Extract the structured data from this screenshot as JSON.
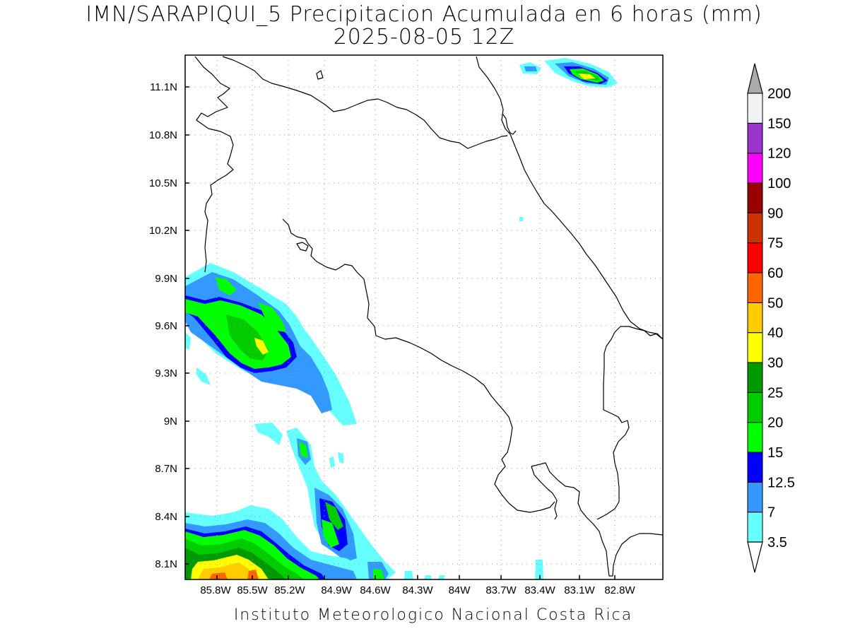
{
  "title": {
    "line1": "IMN/SARAPIQUI_5 Precipitacion Acumulada en 6 horas (mm)",
    "line2": "2025-08-05 12Z"
  },
  "axes": {
    "lat_labels": [
      "11.1N",
      "10.8N",
      "10.5N",
      "10.2N",
      "9.9N",
      "9.6N",
      "9.3N",
      "9N",
      "8.7N",
      "8.4N",
      "8.1N"
    ],
    "lon_labels": [
      "85.8W",
      "85.5W",
      "85.2W",
      "84.9W",
      "84.6W",
      "84.3W",
      "84W",
      "83.7W",
      "83.4W",
      "83.1W",
      "82.8W"
    ]
  },
  "colorbar": {
    "labels": [
      "3.5",
      "7",
      "12.5",
      "15",
      "20",
      "25",
      "30",
      "40",
      "50",
      "60",
      "75",
      "90",
      "100",
      "120",
      "150",
      "200"
    ],
    "colors": [
      "#66ffff",
      "#3399ff",
      "#0000ff",
      "#00ff00",
      "#00cc00",
      "#009900",
      "#ffff00",
      "#ffcc00",
      "#ff6600",
      "#ff0000",
      "#cc3300",
      "#990000",
      "#ff00ff",
      "#9933cc",
      "#f2f2f2"
    ],
    "over_color": "#aaaaaa",
    "under_color": "#ffffff"
  },
  "credit": "Instituto Meteorologico Nacional Costa Rica"
}
